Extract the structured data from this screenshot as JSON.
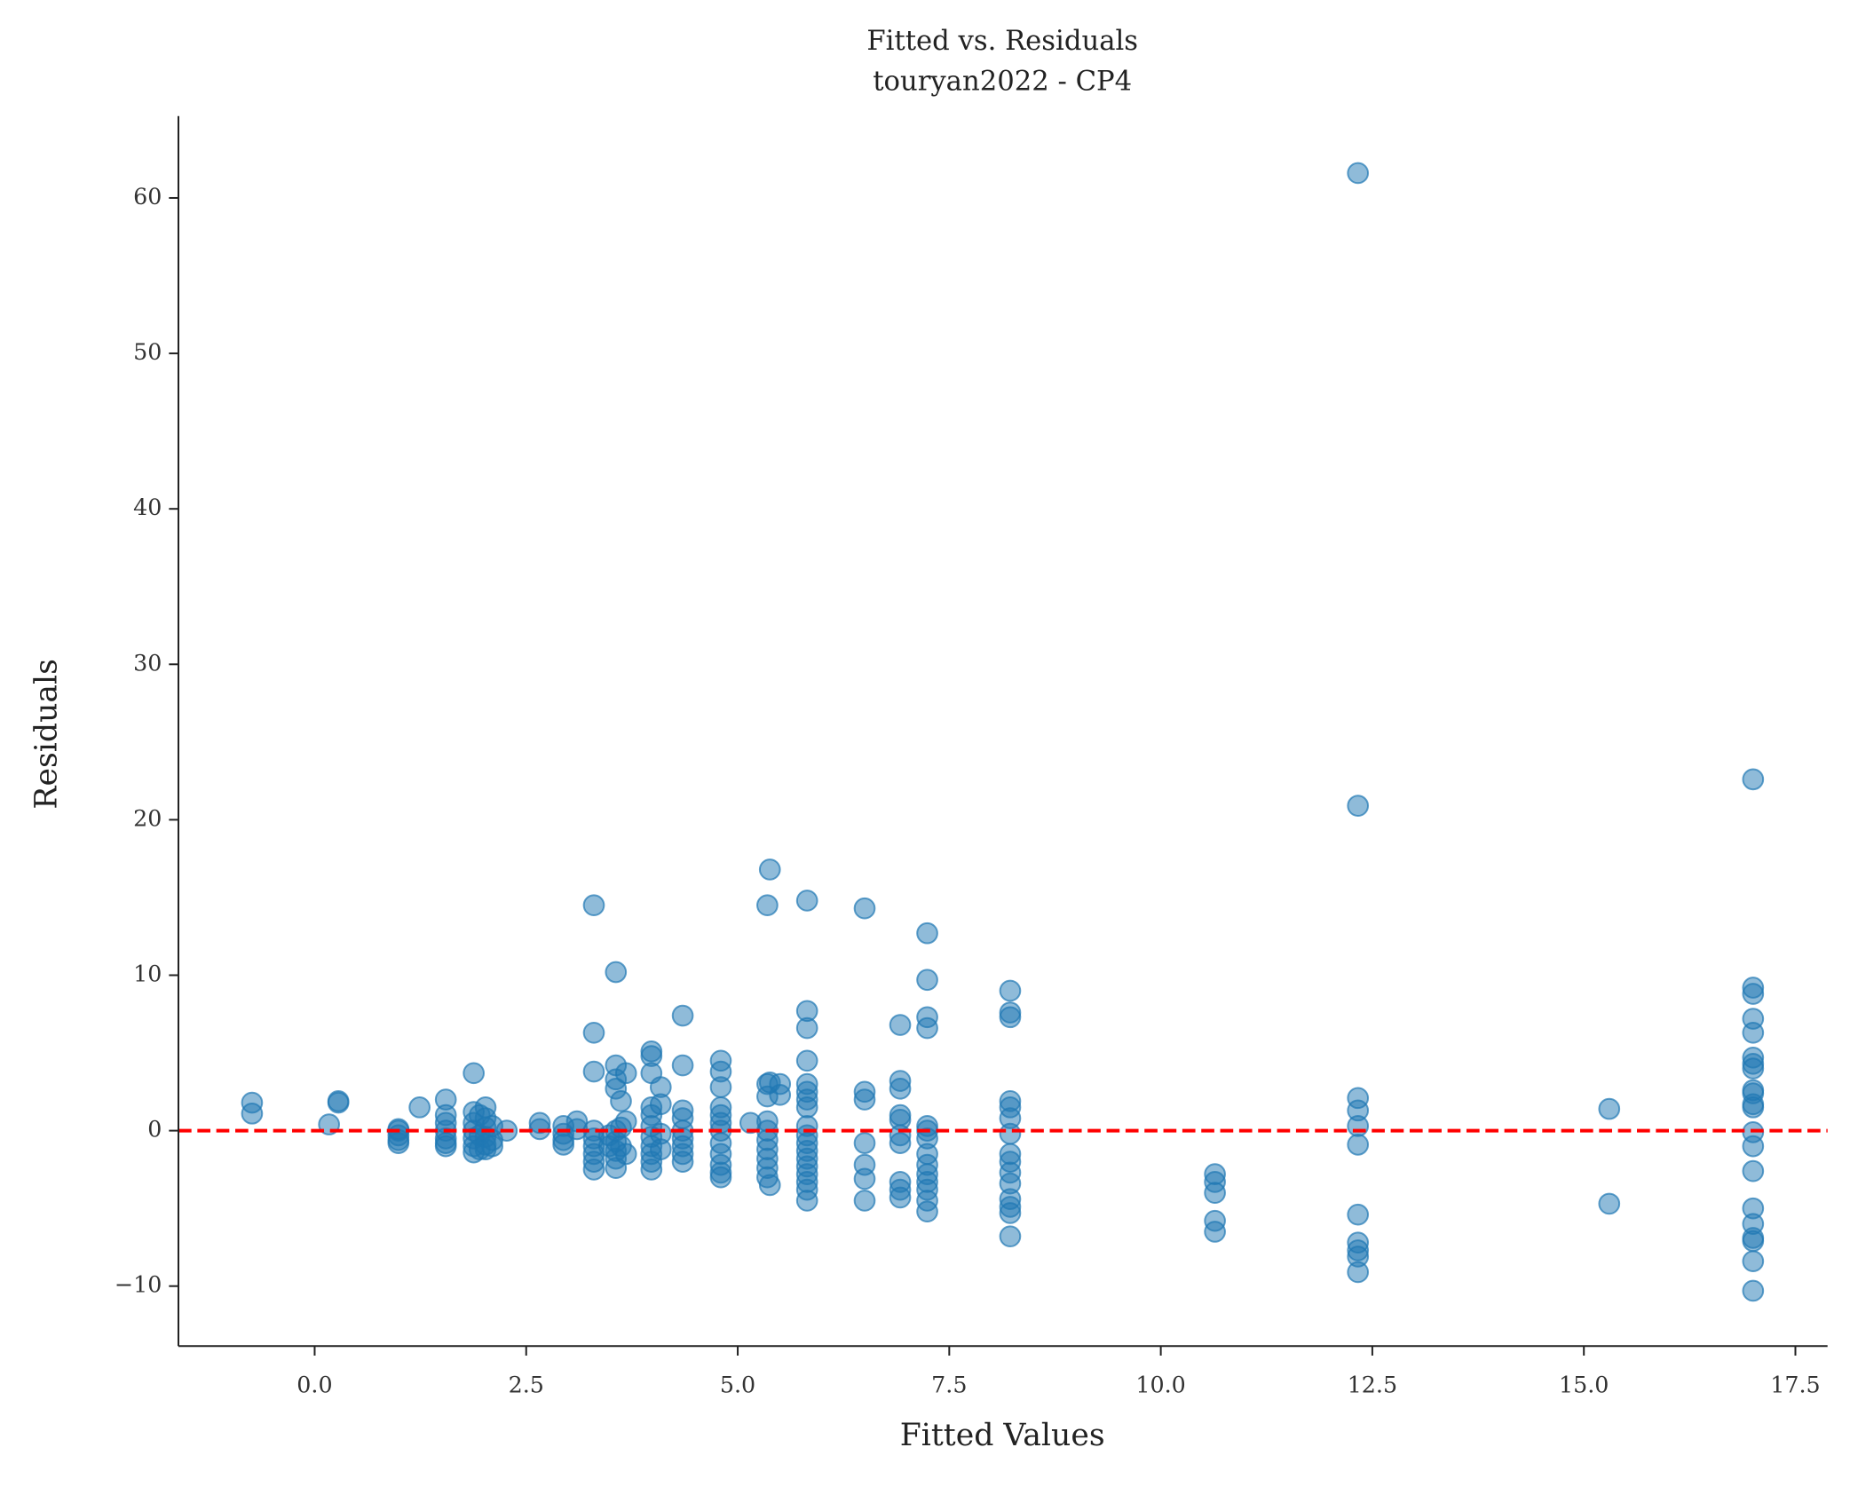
{
  "chart_data": {
    "type": "scatter",
    "title": "Fitted vs. Residuals",
    "subtitle": "touryan2022 - CP4",
    "x_label": "Fitted Values",
    "y_label": "Residuals",
    "color": "#1f77b4",
    "alpha": 0.5,
    "reference_line": {
      "y": 0,
      "color": "#ff0000",
      "style": "dashed"
    },
    "xlim": [
      -1.61,
      17.88
    ],
    "ylim": [
      -13.86,
      65.27
    ],
    "xticks": [
      {
        "value": 0,
        "label": "0.0"
      },
      2.5,
      {
        "value": 5,
        "label": "5.0"
      },
      7.5,
      {
        "value": 10,
        "label": "10.0"
      },
      12.5,
      {
        "value": 15,
        "label": "15.0"
      },
      17.5
    ],
    "yticks": [
      {
        "value": -10,
        "label": "−10"
      },
      0,
      10,
      20,
      30,
      40,
      50,
      60
    ],
    "x": [
      -0.74,
      -0.74,
      0.17,
      0.28,
      0.28,
      0.99,
      0.99,
      0.99,
      0.99,
      0.99,
      1.24,
      1.55,
      1.55,
      1.55,
      1.55,
      1.55,
      1.55,
      1.55,
      1.88,
      1.88,
      1.88,
      1.88,
      1.88,
      1.88,
      1.88,
      1.95,
      1.95,
      1.95,
      2.02,
      2.02,
      2.02,
      2.02,
      2.02,
      2.02,
      2.1,
      2.1,
      2.1,
      2.27,
      2.66,
      2.66,
      2.94,
      2.94,
      2.94,
      2.94,
      3.1,
      3.1,
      3.3,
      3.3,
      3.3,
      3.3,
      3.3,
      3.3,
      3.3,
      3.3,
      3.3,
      3.48,
      3.48,
      3.56,
      3.56,
      3.56,
      3.56,
      3.56,
      3.56,
      3.56,
      3.56,
      3.56,
      3.62,
      3.62,
      3.62,
      3.68,
      3.68,
      3.68,
      3.98,
      3.98,
      3.98,
      3.98,
      3.98,
      3.98,
      3.98,
      3.98,
      3.98,
      3.98,
      3.98,
      4.09,
      4.09,
      4.09,
      4.09,
      4.35,
      4.35,
      4.35,
      4.35,
      4.35,
      4.35,
      4.35,
      4.35,
      4.35,
      4.8,
      4.8,
      4.8,
      4.8,
      4.8,
      4.8,
      4.8,
      4.8,
      4.8,
      4.8,
      4.8,
      4.8,
      5.15,
      5.35,
      5.35,
      5.35,
      5.35,
      5.35,
      5.35,
      5.35,
      5.35,
      5.35,
      5.35,
      5.38,
      5.38,
      5.38,
      5.5,
      5.5,
      5.82,
      5.82,
      5.82,
      5.82,
      5.82,
      5.82,
      5.82,
      5.82,
      5.82,
      5.82,
      5.82,
      5.82,
      5.82,
      5.82,
      5.82,
      5.82,
      5.82,
      5.82,
      6.5,
      6.5,
      6.5,
      6.5,
      6.5,
      6.5,
      6.5,
      6.92,
      6.92,
      6.92,
      6.92,
      6.92,
      6.92,
      6.92,
      6.92,
      6.92,
      6.92,
      7.24,
      7.24,
      7.24,
      7.24,
      7.24,
      7.24,
      7.24,
      7.24,
      7.24,
      7.24,
      7.24,
      7.24,
      7.24,
      7.24,
      8.22,
      8.22,
      8.22,
      8.22,
      8.22,
      8.22,
      8.22,
      8.22,
      8.22,
      8.22,
      8.22,
      8.22,
      8.22,
      8.22,
      8.22,
      10.64,
      10.64,
      10.64,
      10.64,
      10.64,
      12.33,
      12.33,
      12.33,
      12.33,
      12.33,
      12.33,
      12.33,
      12.33,
      12.33,
      12.33,
      12.33,
      15.3,
      15.3,
      17.0,
      17.0,
      17.0,
      17.0,
      17.0,
      17.0,
      17.0,
      17.0,
      17.0,
      17.0,
      17.0,
      17.0,
      17.0,
      17.0,
      17.0,
      17.0,
      17.0,
      17.0,
      17.0,
      17.0,
      17.0
    ],
    "values": [
      1.8,
      1.1,
      0.4,
      1.8,
      1.9,
      0.1,
      0.0,
      -0.3,
      -0.6,
      -0.8,
      1.5,
      2.0,
      1.0,
      0.5,
      0.0,
      -0.5,
      -0.8,
      -1.0,
      3.7,
      1.2,
      0.5,
      0.0,
      -0.5,
      -1.0,
      -1.4,
      1.0,
      -0.3,
      -1.2,
      1.5,
      0.8,
      0.2,
      -0.4,
      -0.9,
      -1.2,
      0.3,
      -0.6,
      -1.0,
      0.0,
      0.5,
      0.1,
      0.3,
      -0.2,
      -0.6,
      -0.9,
      0.6,
      0.1,
      14.5,
      6.3,
      3.8,
      0.0,
      -0.5,
      -1.0,
      -1.5,
      -2.0,
      -2.5,
      -0.3,
      -1.0,
      10.2,
      4.2,
      3.3,
      2.7,
      0.0,
      -0.7,
      -1.3,
      -1.8,
      -2.4,
      1.9,
      0.2,
      -1.0,
      3.7,
      0.6,
      -1.5,
      5.1,
      4.8,
      3.7,
      1.5,
      1.0,
      0.3,
      -0.4,
      -1.0,
      -1.5,
      -2.0,
      -2.5,
      2.8,
      1.7,
      -0.2,
      -1.2,
      7.4,
      4.2,
      1.3,
      0.8,
      0.0,
      -0.5,
      -1.0,
      -1.5,
      -2.0,
      4.5,
      3.8,
      2.8,
      1.5,
      1.0,
      0.5,
      0.0,
      -0.8,
      -1.5,
      -2.2,
      -2.7,
      -3.0,
      0.5,
      14.5,
      3.0,
      2.2,
      0.6,
      0.0,
      -0.6,
      -1.2,
      -1.8,
      -2.4,
      -3.0,
      16.8,
      3.1,
      -3.5,
      3.0,
      2.3,
      14.8,
      7.7,
      6.6,
      4.5,
      3.0,
      2.5,
      2.0,
      1.5,
      0.3,
      -0.3,
      -0.8,
      -1.3,
      -1.8,
      -2.3,
      -2.8,
      -3.3,
      -3.8,
      -4.5,
      14.3,
      2.5,
      2.0,
      -0.8,
      -2.2,
      -3.1,
      -4.5,
      6.8,
      3.2,
      2.7,
      1.0,
      0.7,
      -0.3,
      -0.8,
      -3.3,
      -3.8,
      -4.3,
      12.7,
      9.7,
      7.3,
      6.6,
      0.3,
      0.0,
      -0.5,
      -1.5,
      -2.2,
      -2.8,
      -3.3,
      -3.8,
      -4.5,
      -5.2,
      9.0,
      7.6,
      7.3,
      1.9,
      1.5,
      0.8,
      -0.2,
      -1.5,
      -2.0,
      -2.7,
      -3.4,
      -4.4,
      -4.9,
      -5.3,
      -6.8,
      -2.8,
      -3.3,
      -4.0,
      -5.8,
      -6.5,
      61.6,
      20.9,
      2.1,
      1.3,
      0.3,
      -0.9,
      -5.4,
      -7.2,
      -7.7,
      -8.1,
      -9.1,
      1.4,
      -4.7,
      22.6,
      9.2,
      8.8,
      7.2,
      6.3,
      4.7,
      4.3,
      4.0,
      2.6,
      2.4,
      1.7,
      1.5,
      -0.1,
      -1.0,
      -2.6,
      -5.0,
      -6.0,
      -6.9,
      -7.1,
      -8.4,
      -10.3
    ]
  }
}
